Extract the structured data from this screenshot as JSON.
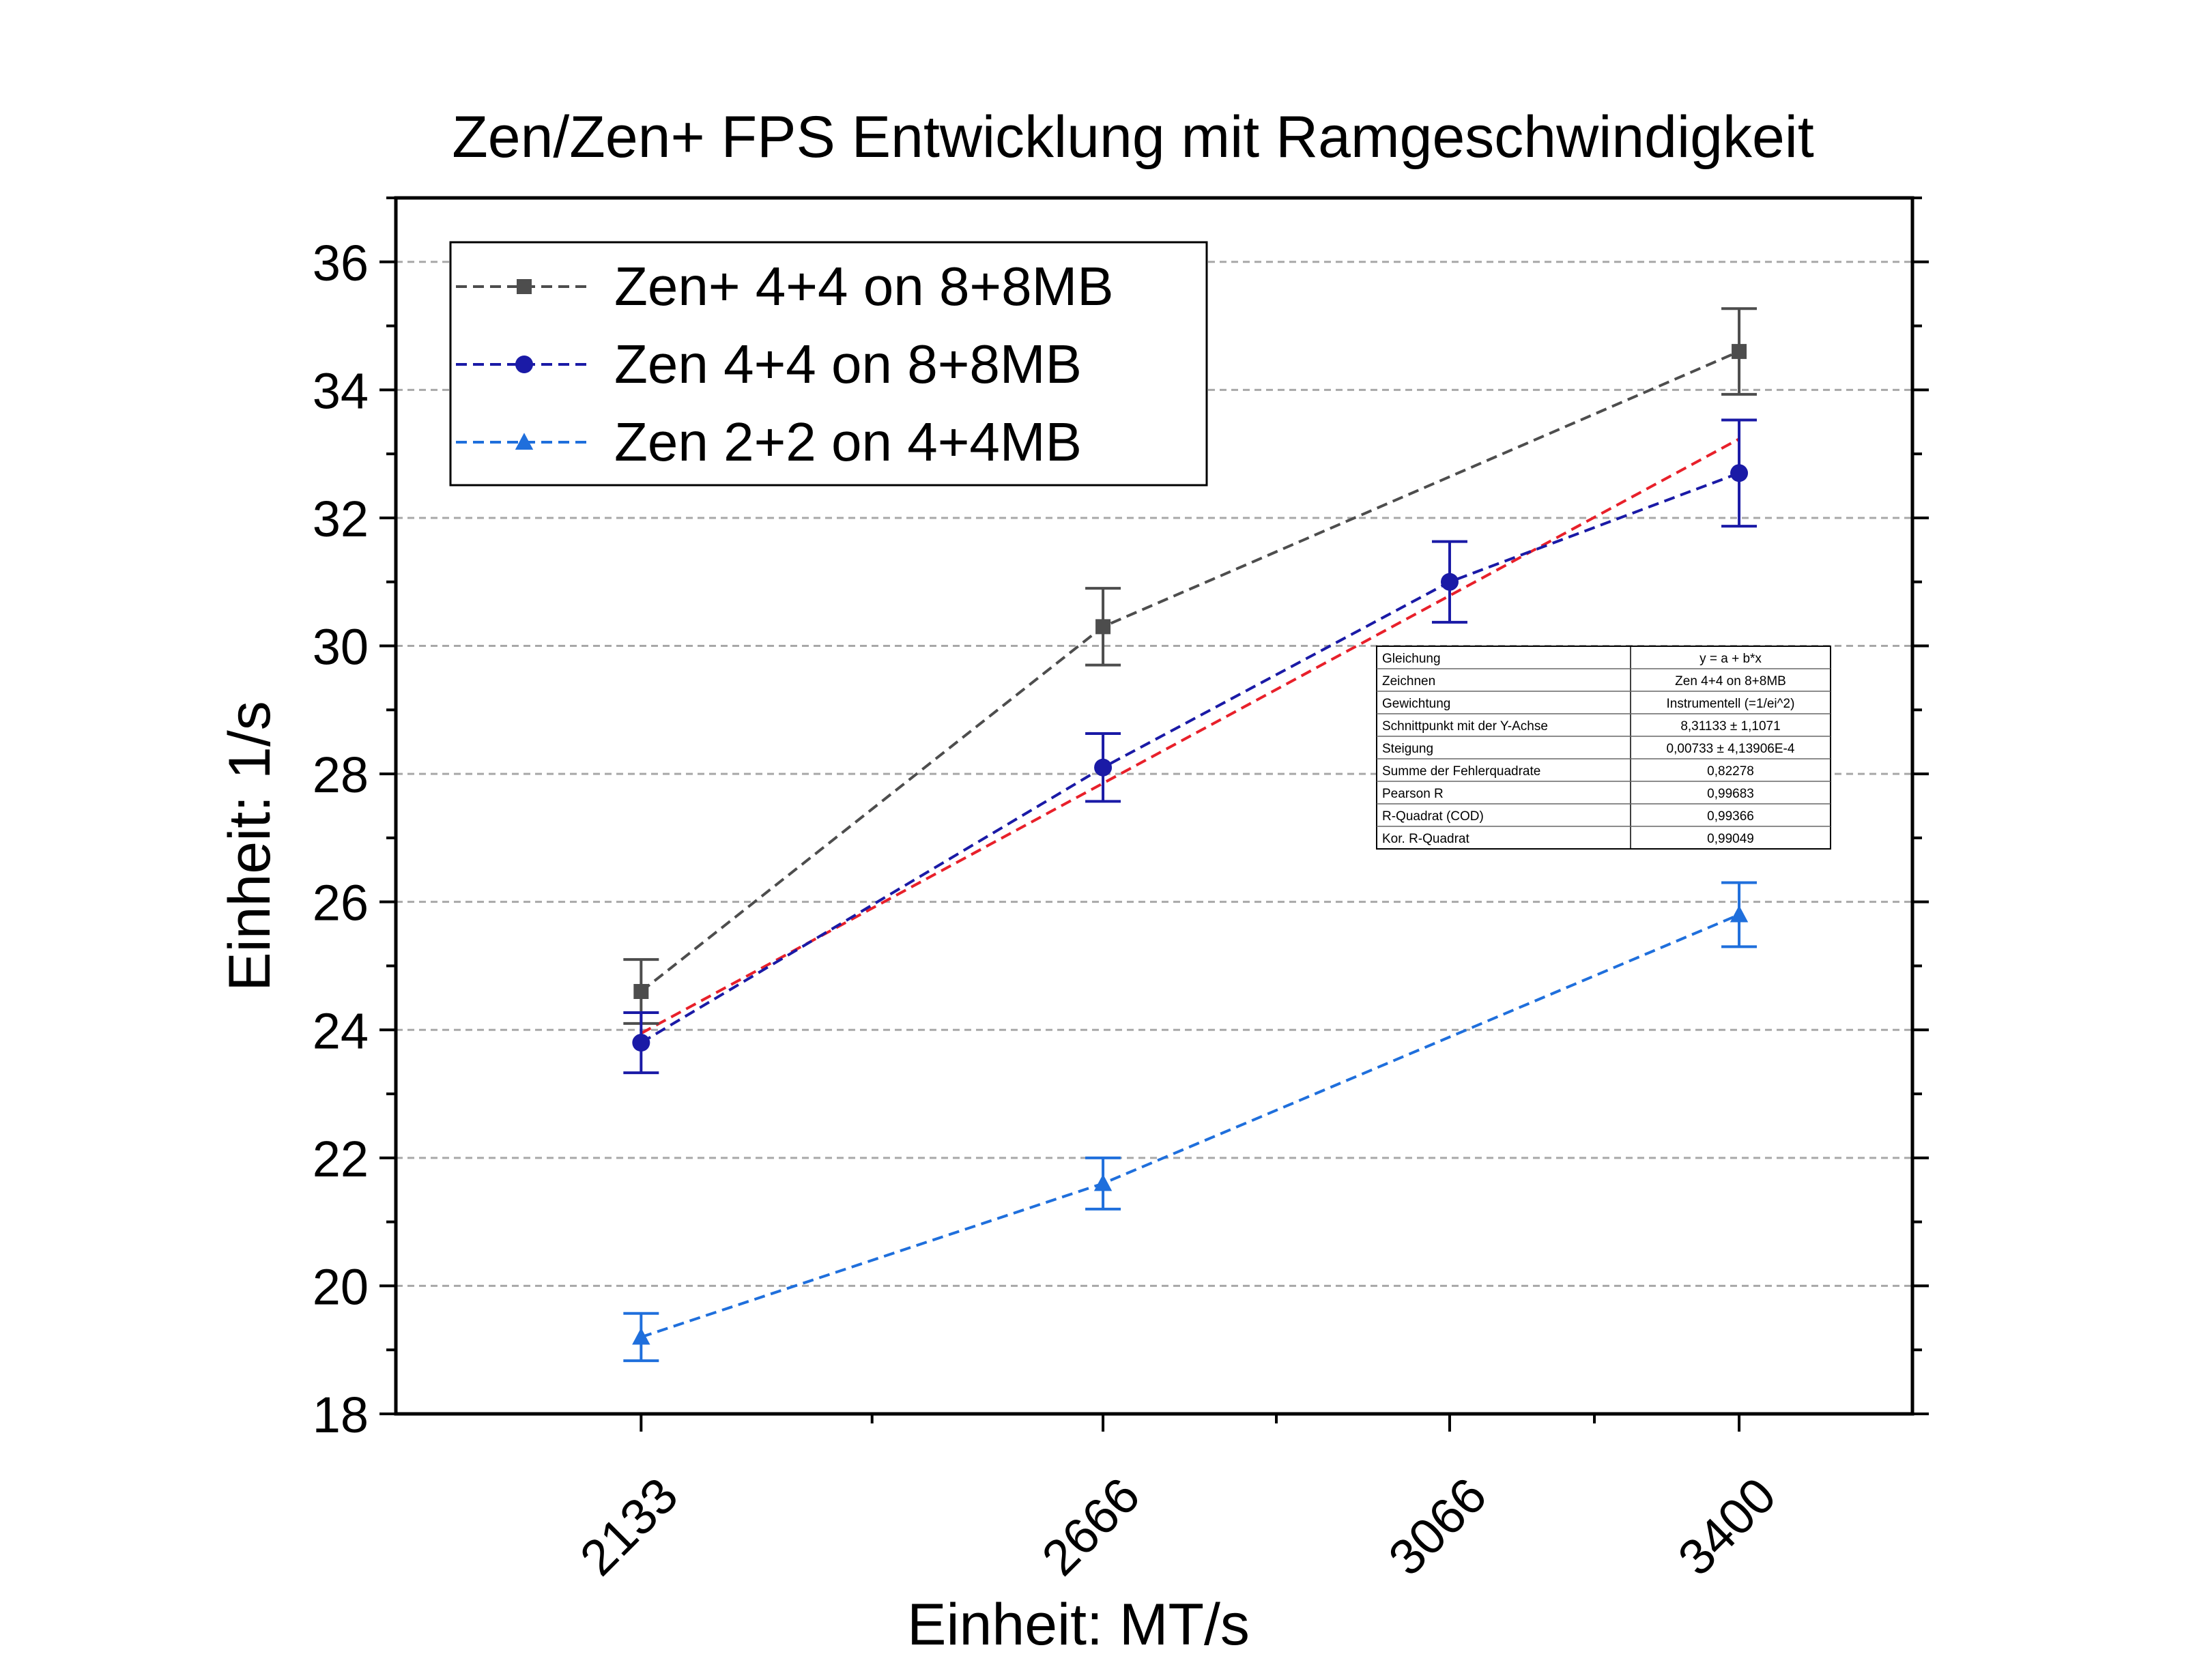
{
  "chart_data": {
    "type": "line",
    "title": "Zen/Zen+ FPS Entwicklung mit Ramgeschwindigkeit",
    "xlabel": "Einheit: MT/s",
    "ylabel": "Einheit: 1/s",
    "xlim": [
      1850,
      3600
    ],
    "ylim": [
      18,
      37
    ],
    "x_ticks": [
      2133,
      2666,
      3066,
      3400
    ],
    "x_tick_labels": [
      "2133",
      "2666",
      "3066",
      "3400"
    ],
    "y_ticks": [
      18,
      20,
      22,
      24,
      26,
      28,
      30,
      32,
      34,
      36
    ],
    "y_tick_labels": [
      "18",
      "20",
      "22",
      "24",
      "26",
      "28",
      "30",
      "32",
      "34",
      "36"
    ],
    "grid": "horizontal dashed",
    "legend_position": "top-left",
    "series": [
      {
        "name": "Zen+ 4+4 on 8+8MB",
        "color": "#4d4d4d",
        "marker": "square",
        "x": [
          2133,
          2666,
          3400
        ],
        "y": [
          24.6,
          30.3,
          34.6
        ],
        "yerr": [
          0.5,
          0.6,
          0.67
        ]
      },
      {
        "name": "Zen 4+4 on 8+8MB",
        "color": "#1a1aa6",
        "marker": "circle",
        "x": [
          2133,
          2666,
          3066,
          3400
        ],
        "y": [
          23.8,
          28.1,
          31.0,
          32.7
        ],
        "yerr": [
          0.47,
          0.53,
          0.63,
          0.83
        ]
      },
      {
        "name": "Zen 2+2 on 4+4MB",
        "color": "#1f6fdc",
        "marker": "triangle",
        "x": [
          2133,
          2666,
          3400
        ],
        "y": [
          19.2,
          21.6,
          25.8
        ],
        "yerr": [
          0.37,
          0.4,
          0.5
        ]
      }
    ],
    "fit": {
      "color": "#e8202a",
      "intercept": 8.31133,
      "slope": 0.00733,
      "x_range": [
        2133,
        3400
      ]
    },
    "fit_table": [
      [
        "Gleichung",
        "y = a + b*x"
      ],
      [
        "Zeichnen",
        "Zen 4+4 on 8+8MB"
      ],
      [
        "Gewichtung",
        "Instrumentell (=1/ei^2)"
      ],
      [
        "Schnittpunkt mit der Y-Achse",
        "8,31133 ± 1,1071"
      ],
      [
        "Steigung",
        "0,00733 ± 4,13906E-4"
      ],
      [
        "Summe der Fehlerquadrate",
        "0,82278"
      ],
      [
        "Pearson R",
        "0,99683"
      ],
      [
        "R-Quadrat (COD)",
        "0,99366"
      ],
      [
        "Kor. R-Quadrat",
        "0,99049"
      ]
    ]
  }
}
